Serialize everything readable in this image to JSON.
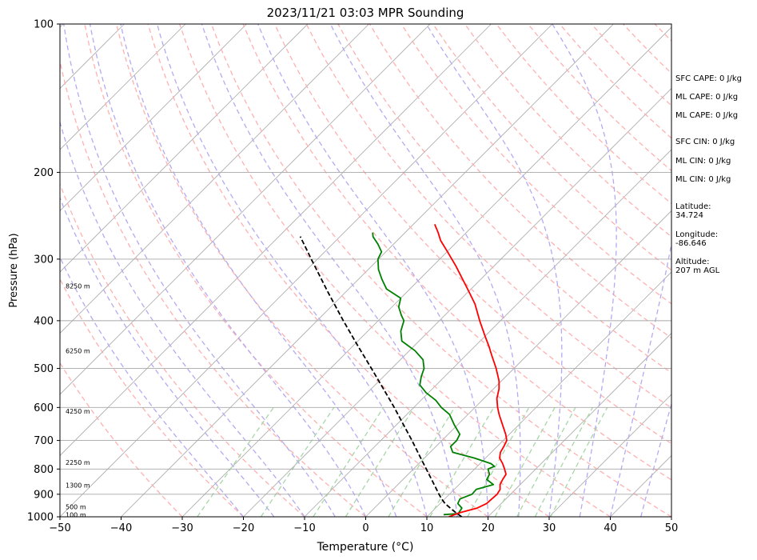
{
  "chart_data": {
    "type": "line",
    "chart_kind": "skew-t log-p sounding diagram",
    "title": "2023/11/21 03:03 MPR Sounding",
    "xlabel": "Temperature (°C)",
    "ylabel": "Pressure (hPa)",
    "xlim": [
      -50,
      50
    ],
    "ylim": [
      1000,
      100
    ],
    "y_scale": "log",
    "x_ticks": [
      "−50",
      "−40",
      "−30",
      "−20",
      "−10",
      "0",
      "10",
      "20",
      "30",
      "40",
      "50"
    ],
    "y_ticks": [
      "1000",
      "900",
      "800",
      "700",
      "600",
      "500",
      "400",
      "300",
      "200",
      "100"
    ],
    "grid": true,
    "colors": {
      "temperature": "#ff0000",
      "dewpoint": "#008000",
      "parcel": "#000000",
      "dry_adiabats": "#ffb0b0",
      "moist_adiabats": "#b4aaf2",
      "mixing_ratio": "#a8d6a8",
      "isotherms": "#aaaaaa"
    },
    "series": [
      {
        "key": "temperature",
        "style": "solid",
        "points": [
          {
            "p": 1000,
            "t": 13.6
          },
          {
            "p": 980,
            "t": 14.8
          },
          {
            "p": 960,
            "t": 16.8
          },
          {
            "p": 940,
            "t": 17.6
          },
          {
            "p": 920,
            "t": 17.7
          },
          {
            "p": 900,
            "t": 17.8
          },
          {
            "p": 880,
            "t": 17.5
          },
          {
            "p": 860,
            "t": 16.7
          },
          {
            "p": 840,
            "t": 16.3
          },
          {
            "p": 820,
            "t": 16.0
          },
          {
            "p": 800,
            "t": 14.9
          },
          {
            "p": 780,
            "t": 13.7
          },
          {
            "p": 760,
            "t": 12.3
          },
          {
            "p": 740,
            "t": 11.5
          },
          {
            "p": 720,
            "t": 11.1
          },
          {
            "p": 700,
            "t": 10.6
          },
          {
            "p": 680,
            "t": 9.4
          },
          {
            "p": 650,
            "t": 7.3
          },
          {
            "p": 620,
            "t": 5.1
          },
          {
            "p": 600,
            "t": 3.7
          },
          {
            "p": 575,
            "t": 2.1
          },
          {
            "p": 550,
            "t": 0.9
          },
          {
            "p": 530,
            "t": -0.4
          },
          {
            "p": 500,
            "t": -2.9
          },
          {
            "p": 470,
            "t": -5.8
          },
          {
            "p": 450,
            "t": -7.8
          },
          {
            "p": 430,
            "t": -10.0
          },
          {
            "p": 400,
            "t": -13.4
          },
          {
            "p": 370,
            "t": -16.9
          },
          {
            "p": 350,
            "t": -19.8
          },
          {
            "p": 330,
            "t": -22.9
          },
          {
            "p": 310,
            "t": -26.2
          },
          {
            "p": 290,
            "t": -29.9
          },
          {
            "p": 275,
            "t": -32.9
          },
          {
            "p": 265,
            "t": -34.6
          },
          {
            "p": 255,
            "t": -36.5
          }
        ]
      },
      {
        "key": "dewpoint",
        "style": "solid",
        "points": [
          {
            "p": 990,
            "t": 12.4
          },
          {
            "p": 985,
            "t": 14.6
          },
          {
            "p": 960,
            "t": 14.3
          },
          {
            "p": 940,
            "t": 12.9
          },
          {
            "p": 920,
            "t": 12.5
          },
          {
            "p": 900,
            "t": 13.7
          },
          {
            "p": 880,
            "t": 13.6
          },
          {
            "p": 860,
            "t": 15.6
          },
          {
            "p": 840,
            "t": 13.7
          },
          {
            "p": 820,
            "t": 13.3
          },
          {
            "p": 800,
            "t": 12.2
          },
          {
            "p": 790,
            "t": 12.8
          },
          {
            "p": 780,
            "t": 11.8
          },
          {
            "p": 760,
            "t": 8.2
          },
          {
            "p": 740,
            "t": 3.7
          },
          {
            "p": 720,
            "t": 2.4
          },
          {
            "p": 700,
            "t": 2.4
          },
          {
            "p": 680,
            "t": 1.9
          },
          {
            "p": 650,
            "t": -0.6
          },
          {
            "p": 620,
            "t": -3.0
          },
          {
            "p": 600,
            "t": -5.5
          },
          {
            "p": 580,
            "t": -7.6
          },
          {
            "p": 560,
            "t": -10.4
          },
          {
            "p": 540,
            "t": -12.7
          },
          {
            "p": 520,
            "t": -13.8
          },
          {
            "p": 500,
            "t": -14.7
          },
          {
            "p": 480,
            "t": -16.3
          },
          {
            "p": 460,
            "t": -19.1
          },
          {
            "p": 440,
            "t": -22.8
          },
          {
            "p": 420,
            "t": -24.6
          },
          {
            "p": 400,
            "t": -25.8
          },
          {
            "p": 390,
            "t": -27.1
          },
          {
            "p": 375,
            "t": -28.9
          },
          {
            "p": 360,
            "t": -30.0
          },
          {
            "p": 345,
            "t": -33.8
          },
          {
            "p": 330,
            "t": -36.1
          },
          {
            "p": 315,
            "t": -38.3
          },
          {
            "p": 300,
            "t": -40.1
          },
          {
            "p": 290,
            "t": -40.7
          },
          {
            "p": 280,
            "t": -42.5
          },
          {
            "p": 270,
            "t": -44.6
          },
          {
            "p": 265,
            "t": -45.3
          }
        ]
      },
      {
        "key": "parcel",
        "style": "dashed",
        "points": [
          {
            "p": 1000,
            "t": 15.7
          },
          {
            "p": 980,
            "t": 14.0
          },
          {
            "p": 960,
            "t": 12.4
          },
          {
            "p": 940,
            "t": 10.8
          },
          {
            "p": 920,
            "t": 9.5
          },
          {
            "p": 900,
            "t": 8.3
          },
          {
            "p": 850,
            "t": 5.3
          },
          {
            "p": 800,
            "t": 2.1
          },
          {
            "p": 750,
            "t": -1.3
          },
          {
            "p": 700,
            "t": -4.9
          },
          {
            "p": 650,
            "t": -8.9
          },
          {
            "p": 600,
            "t": -13.2
          },
          {
            "p": 550,
            "t": -18.0
          },
          {
            "p": 500,
            "t": -23.3
          },
          {
            "p": 450,
            "t": -29.2
          },
          {
            "p": 400,
            "t": -35.7
          },
          {
            "p": 350,
            "t": -42.9
          },
          {
            "p": 300,
            "t": -51.0
          },
          {
            "p": 280,
            "t": -54.6
          },
          {
            "p": 270,
            "t": -56.5
          }
        ]
      }
    ],
    "height_labels": [
      {
        "p": 990,
        "text": "100 m"
      },
      {
        "p": 955,
        "text": "500 m"
      },
      {
        "p": 863,
        "text": "1300 m"
      },
      {
        "p": 775,
        "text": "2250 m"
      },
      {
        "p": 610,
        "text": "4250 m"
      },
      {
        "p": 460,
        "text": "6250 m"
      },
      {
        "p": 340,
        "text": "8250 m"
      }
    ]
  },
  "info": {
    "sfc_cape": "SFC CAPE: 0 J/kg",
    "ml_cape_1": "ML CAPE: 0 J/kg",
    "ml_cape_2": "ML CAPE: 0 J/kg",
    "sfc_cin": "SFC CIN: 0 J/kg",
    "ml_cin_1": "ML CIN: 0 J/kg",
    "ml_cin_2": "ML CIN: 0 J/kg",
    "latitude": "Latitude:\n34.724",
    "longitude": "Longitude:\n-86.646",
    "altitude": "Altitude:\n207 m AGL"
  }
}
